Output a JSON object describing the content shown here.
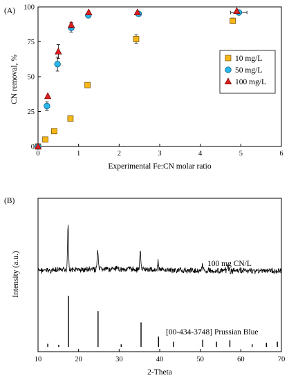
{
  "chart_data": [
    {
      "type": "scatter",
      "panel_label": "(A)",
      "xlabel": "Experimental Fe:CN molar ratio",
      "ylabel": "CN removal, %",
      "xlim": [
        0,
        6
      ],
      "ylim": [
        0,
        100
      ],
      "xticks": [
        "0",
        "1",
        "2",
        "3",
        "4",
        "5",
        "6"
      ],
      "yticks": [
        "0",
        "25",
        "50",
        "75",
        "100"
      ],
      "legend_position": "right",
      "series": [
        {
          "name": "10 mg/L",
          "marker": "square",
          "color": "#f5b718",
          "x": [
            0,
            0.18,
            0.4,
            0.8,
            1.22,
            2.42,
            4.8
          ],
          "y": [
            0,
            5,
            11,
            20,
            44,
            77,
            90
          ],
          "err": [
            0,
            0,
            0,
            0,
            0,
            3,
            2
          ]
        },
        {
          "name": "50 mg/L",
          "marker": "circle",
          "color": "#29b6e8",
          "x": [
            0,
            0.22,
            0.48,
            0.82,
            1.24,
            2.48,
            4.95
          ],
          "y": [
            0,
            29,
            59,
            85,
            94,
            95,
            96
          ],
          "err": [
            0,
            3,
            5,
            3,
            0,
            1,
            1
          ],
          "xerr": [
            0,
            0,
            0,
            0,
            0,
            0,
            0.2
          ]
        },
        {
          "name": "100 mg/L",
          "marker": "triangle",
          "color": "#e02020",
          "x": [
            0,
            0.24,
            0.5,
            0.82,
            1.25,
            2.45,
            4.9
          ],
          "y": [
            0,
            36,
            68,
            87,
            96,
            96,
            97
          ],
          "err": [
            0,
            0,
            5,
            2,
            0,
            0,
            0
          ]
        }
      ]
    },
    {
      "type": "line",
      "panel_label": "(B)",
      "xlabel": "2-Theta",
      "ylabel": "Intensity (a.u.)",
      "xlim": [
        10,
        70
      ],
      "xticks": [
        "10",
        "20",
        "30",
        "40",
        "50",
        "60",
        "70"
      ],
      "sample_label": "100 mg CN/L",
      "reference_label": "[00-434-3748] Prussian Blue",
      "pattern_peaks": [
        {
          "x": 17.4,
          "h": 1.0
        },
        {
          "x": 24.7,
          "h": 0.42
        },
        {
          "x": 35.2,
          "h": 0.4
        },
        {
          "x": 39.6,
          "h": 0.17
        },
        {
          "x": 50.5,
          "h": 0.1
        },
        {
          "x": 56.8,
          "h": 0.1
        }
      ],
      "reference_peaks": [
        {
          "x": 12.4,
          "h": 0.06
        },
        {
          "x": 15.1,
          "h": 0.04
        },
        {
          "x": 17.5,
          "h": 1.0
        },
        {
          "x": 24.8,
          "h": 0.7
        },
        {
          "x": 30.5,
          "h": 0.05
        },
        {
          "x": 35.4,
          "h": 0.48
        },
        {
          "x": 39.7,
          "h": 0.2
        },
        {
          "x": 43.4,
          "h": 0.1
        },
        {
          "x": 50.6,
          "h": 0.14
        },
        {
          "x": 54.0,
          "h": 0.1
        },
        {
          "x": 57.3,
          "h": 0.13
        },
        {
          "x": 62.8,
          "h": 0.05
        },
        {
          "x": 66.3,
          "h": 0.08
        },
        {
          "x": 69.0,
          "h": 0.1
        }
      ]
    }
  ]
}
